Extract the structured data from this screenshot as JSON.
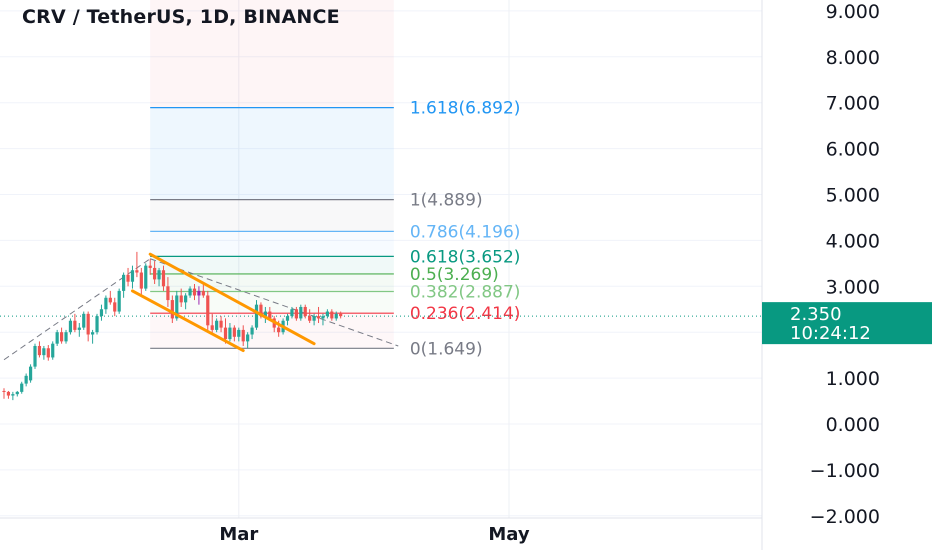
{
  "header": {
    "title": "CRV / TetherUS, 1D, BINANCE"
  },
  "colors": {
    "up": "#26a69a",
    "down": "#ef5350",
    "fib_blue": "#2196f3",
    "fib_gray": "#787b86",
    "fib_green": "#089981",
    "fib_red": "#f23645",
    "channel": "#ff9800",
    "price_tag": "#089981"
  },
  "chart_data": {
    "type": "candlestick",
    "title": "CRV / TetherUS, 1D, BINANCE",
    "ylim": [
      -2.2,
      9.4
    ],
    "y_ticks": [
      {
        "value": 9,
        "label": "9.000"
      },
      {
        "value": 8,
        "label": "8.000"
      },
      {
        "value": 7,
        "label": "7.000"
      },
      {
        "value": 6,
        "label": "6.000"
      },
      {
        "value": 5,
        "label": "5.000"
      },
      {
        "value": 4,
        "label": "4.000"
      },
      {
        "value": 3,
        "label": "3.000"
      },
      {
        "value": 2,
        "label": "2.000"
      },
      {
        "value": 1,
        "label": "1.000"
      },
      {
        "value": 0,
        "label": "0.000"
      },
      {
        "value": -1,
        "label": "−1.000"
      },
      {
        "value": -2,
        "label": "−2.000"
      }
    ],
    "x_labels": [
      {
        "label": "Mar",
        "day": 53
      },
      {
        "label": "May",
        "day": 114
      }
    ],
    "x_range_days": [
      0,
      172
    ],
    "current_price": {
      "value": 2.35,
      "label": "2.350",
      "countdown": "10:24:12"
    },
    "fib_levels": [
      {
        "ratio": "1.618",
        "price": 6.892,
        "label": "1.618(6.892)",
        "color": "#2196f3"
      },
      {
        "ratio": "1",
        "price": 4.889,
        "label": "1(4.889)",
        "color": "#787b86"
      },
      {
        "ratio": "0.786",
        "price": 4.196,
        "label": "0.786(4.196)",
        "color": "#64b5f6"
      },
      {
        "ratio": "0.618",
        "price": 3.652,
        "label": "0.618(3.652)",
        "color": "#089981"
      },
      {
        "ratio": "0.5",
        "price": 3.269,
        "label": "0.5(3.269)",
        "color": "#4caf50"
      },
      {
        "ratio": "0.382",
        "price": 2.887,
        "label": "0.382(2.887)",
        "color": "#81c784"
      },
      {
        "ratio": "0.236",
        "price": 2.414,
        "label": "0.236(2.414)",
        "color": "#f23645"
      },
      {
        "ratio": "0",
        "price": 1.649,
        "label": "0(1.649)",
        "color": "#787b86"
      }
    ],
    "fib_range_days": [
      33,
      88
    ],
    "channel_lines": [
      {
        "from": {
          "day": 33,
          "price": 3.7
        },
        "to": {
          "day": 70,
          "price": 1.75
        }
      },
      {
        "from": {
          "day": 29,
          "price": 2.9
        },
        "to": {
          "day": 54,
          "price": 1.6
        }
      }
    ],
    "dashed_lines": [
      {
        "from": {
          "day": 0,
          "price": 1.4
        },
        "to": {
          "day": 33,
          "price": 3.6
        }
      },
      {
        "from": {
          "day": 33,
          "price": 3.6
        },
        "to": {
          "day": 89,
          "price": 1.7
        }
      }
    ],
    "candles": [
      [
        0,
        0.72,
        0.78,
        0.55,
        0.7
      ],
      [
        1,
        0.7,
        0.72,
        0.55,
        0.62
      ],
      [
        2,
        0.62,
        0.7,
        0.52,
        0.65
      ],
      [
        3,
        0.65,
        0.72,
        0.6,
        0.7
      ],
      [
        4,
        0.7,
        0.92,
        0.66,
        0.88
      ],
      [
        5,
        0.88,
        1.1,
        0.82,
        1.05
      ],
      [
        6,
        0.95,
        1.3,
        0.9,
        1.25
      ],
      [
        7,
        1.25,
        1.75,
        1.2,
        1.7
      ],
      [
        8,
        1.7,
        1.8,
        1.45,
        1.5
      ],
      [
        9,
        1.5,
        1.7,
        1.4,
        1.65
      ],
      [
        10,
        1.65,
        1.72,
        1.38,
        1.45
      ],
      [
        11,
        1.45,
        1.8,
        1.4,
        1.75
      ],
      [
        12,
        1.75,
        2.05,
        1.7,
        2.0
      ],
      [
        13,
        2.0,
        2.1,
        1.75,
        1.8
      ],
      [
        14,
        1.8,
        2.05,
        1.75,
        2.0
      ],
      [
        15,
        2.0,
        2.3,
        1.95,
        2.25
      ],
      [
        16,
        2.25,
        2.4,
        2.0,
        2.05
      ],
      [
        17,
        2.05,
        2.2,
        1.9,
        2.1
      ],
      [
        18,
        2.1,
        2.45,
        2.05,
        2.4
      ],
      [
        19,
        2.4,
        2.45,
        1.8,
        1.95
      ],
      [
        20,
        1.95,
        2.05,
        1.75,
        2.0
      ],
      [
        21,
        2.0,
        2.4,
        1.95,
        2.35
      ],
      [
        22,
        2.35,
        2.6,
        2.25,
        2.5
      ],
      [
        23,
        2.5,
        2.8,
        2.4,
        2.75
      ],
      [
        24,
        2.75,
        2.9,
        2.6,
        2.65
      ],
      [
        25,
        2.65,
        2.75,
        2.35,
        2.45
      ],
      [
        26,
        2.45,
        2.95,
        2.4,
        2.9
      ],
      [
        27,
        2.9,
        3.3,
        2.75,
        3.25
      ],
      [
        28,
        3.25,
        3.4,
        3.0,
        3.1
      ],
      [
        29,
        3.1,
        3.45,
        2.95,
        3.35
      ],
      [
        30,
        3.35,
        3.75,
        3.2,
        3.3
      ],
      [
        31,
        3.3,
        3.4,
        2.8,
        2.95
      ],
      [
        32,
        2.95,
        3.5,
        2.9,
        3.45
      ],
      [
        33,
        3.45,
        3.6,
        3.25,
        3.4
      ],
      [
        34,
        3.4,
        3.55,
        3.05,
        3.15
      ],
      [
        35,
        3.15,
        3.4,
        3.0,
        3.35
      ],
      [
        36,
        3.35,
        3.45,
        2.9,
        3.0
      ],
      [
        37,
        3.0,
        3.2,
        2.55,
        2.7
      ],
      [
        38,
        2.7,
        2.8,
        2.2,
        2.3
      ],
      [
        39,
        2.3,
        2.9,
        2.25,
        2.8
      ],
      [
        40,
        2.8,
        2.95,
        2.55,
        2.65
      ],
      [
        41,
        2.65,
        2.85,
        2.5,
        2.8
      ],
      [
        42,
        2.8,
        3.0,
        2.75,
        2.95
      ],
      [
        43,
        2.95,
        3.05,
        2.7,
        2.8
      ],
      [
        44,
        2.8,
        3.0,
        2.6,
        2.9
      ],
      [
        45,
        2.9,
        3.05,
        2.75,
        2.8
      ],
      [
        46,
        2.8,
        2.9,
        2.05,
        2.15
      ],
      [
        47,
        2.15,
        2.4,
        1.95,
        2.05
      ],
      [
        48,
        2.05,
        2.3,
        2.0,
        2.25
      ],
      [
        49,
        2.25,
        2.35,
        2.0,
        2.1
      ],
      [
        50,
        2.1,
        2.3,
        1.75,
        1.85
      ],
      [
        51,
        1.85,
        2.2,
        1.8,
        2.1
      ],
      [
        52,
        2.1,
        2.15,
        1.8,
        1.9
      ],
      [
        53,
        1.9,
        2.1,
        1.8,
        2.05
      ],
      [
        54,
        2.05,
        2.15,
        1.7,
        1.8
      ],
      [
        55,
        1.8,
        2.0,
        1.65,
        1.95
      ],
      [
        56,
        1.95,
        2.15,
        1.85,
        2.1
      ],
      [
        57,
        2.1,
        2.7,
        2.05,
        2.6
      ],
      [
        58,
        2.6,
        2.65,
        2.3,
        2.35
      ],
      [
        59,
        2.35,
        2.55,
        2.2,
        2.45
      ],
      [
        60,
        2.45,
        2.55,
        2.25,
        2.3
      ],
      [
        61,
        2.3,
        2.35,
        2.0,
        2.1
      ],
      [
        62,
        2.1,
        2.25,
        1.9,
        2.0
      ],
      [
        63,
        2.0,
        2.3,
        1.95,
        2.25
      ],
      [
        64,
        2.25,
        2.4,
        2.15,
        2.35
      ],
      [
        65,
        2.35,
        2.55,
        2.3,
        2.5
      ],
      [
        66,
        2.5,
        2.55,
        2.25,
        2.3
      ],
      [
        67,
        2.3,
        2.6,
        2.25,
        2.55
      ],
      [
        68,
        2.55,
        2.6,
        2.3,
        2.35
      ],
      [
        69,
        2.35,
        2.5,
        2.2,
        2.25
      ],
      [
        70,
        2.25,
        2.4,
        2.15,
        2.35
      ],
      [
        71,
        2.35,
        2.55,
        2.2,
        2.3
      ],
      [
        72,
        2.3,
        2.4,
        2.15,
        2.35
      ],
      [
        73,
        2.35,
        2.5,
        2.3,
        2.45
      ],
      [
        74,
        2.45,
        2.5,
        2.25,
        2.3
      ],
      [
        75,
        2.3,
        2.45,
        2.25,
        2.4
      ],
      [
        76,
        2.4,
        2.45,
        2.3,
        2.35
      ]
    ]
  }
}
